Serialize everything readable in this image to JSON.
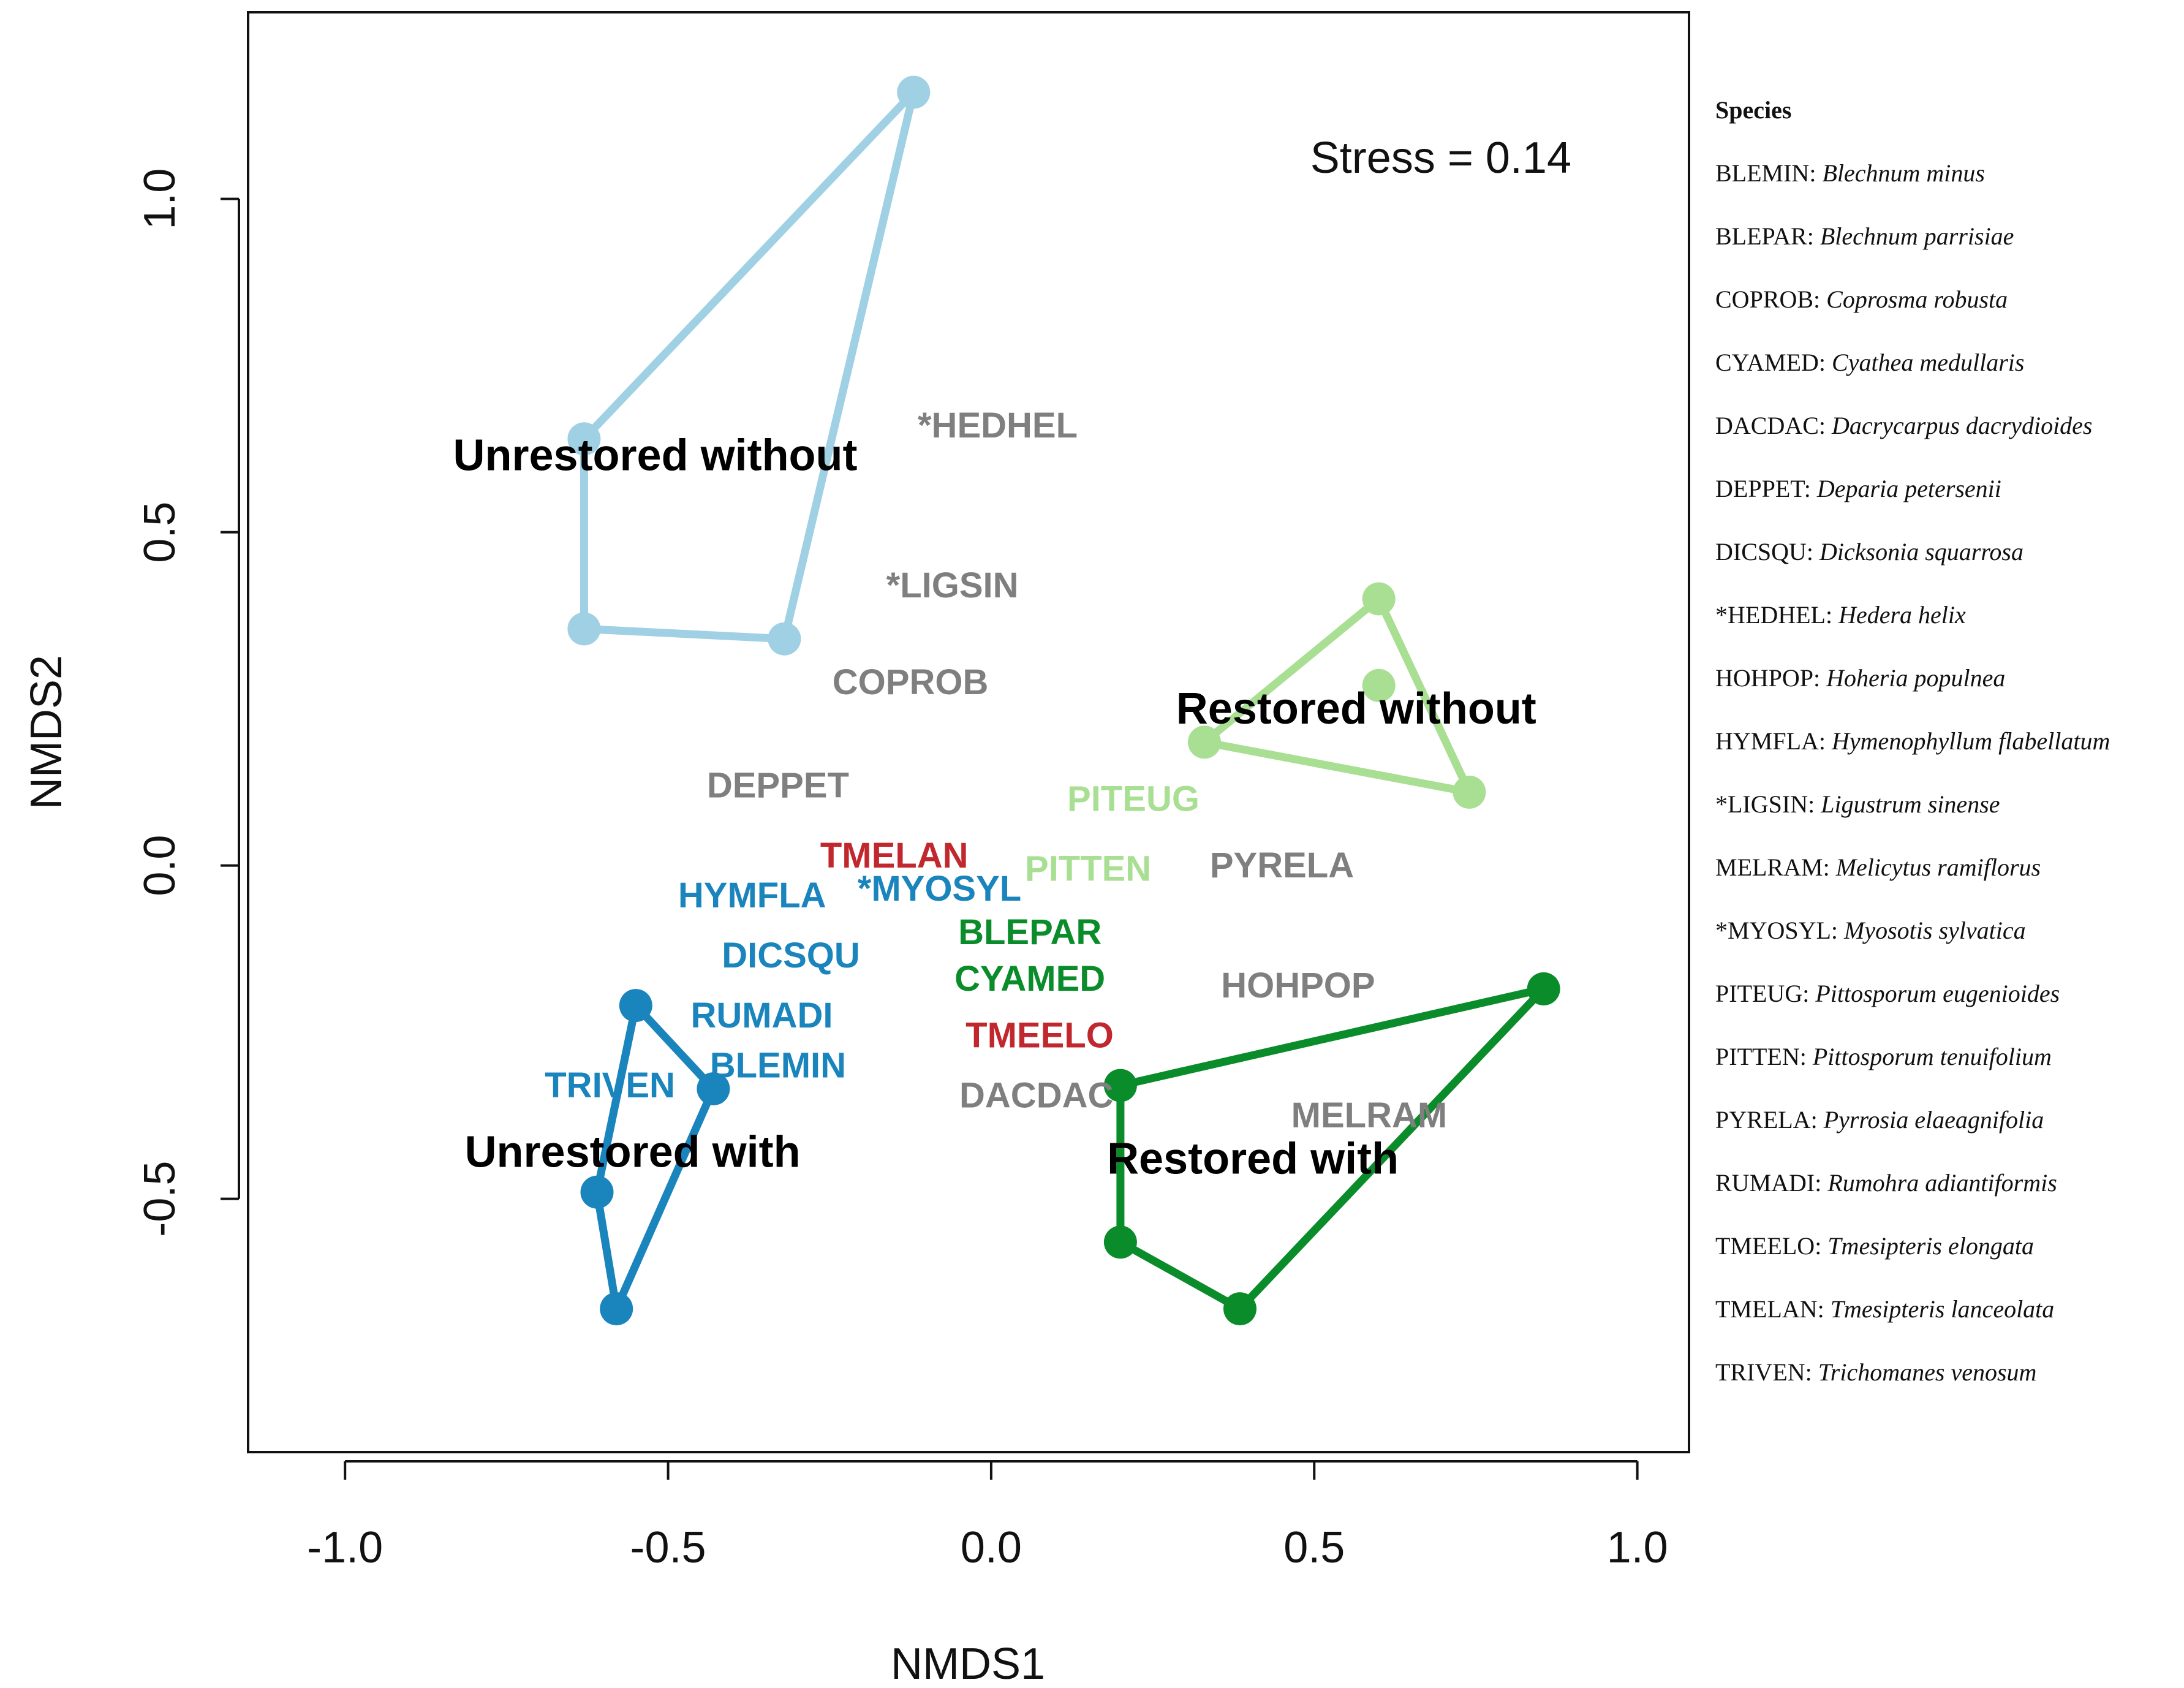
{
  "chart_data": {
    "type": "scatter",
    "subtype": "nmds-ordination",
    "xlabel": "NMDS1",
    "ylabel": "NMDS2",
    "xlim": [
      -1.15,
      1.08
    ],
    "ylim": [
      -0.88,
      1.28
    ],
    "x_ticks": [
      -1.0,
      -0.5,
      0.0,
      0.5,
      1.0
    ],
    "x_tick_labels": [
      "-1.0",
      "-0.5",
      "0.0",
      "0.5",
      "1.0"
    ],
    "y_ticks": [
      -0.5,
      0.0,
      0.5,
      1.0
    ],
    "y_tick_labels": [
      "-0.5",
      "0.0",
      "0.5",
      "1.0"
    ],
    "stress_label": "Stress =  0.14",
    "grid": false,
    "groups": [
      {
        "name": "Unrestored without",
        "color": "#9fd0e3",
        "points": [
          [
            -0.63,
            0.64
          ],
          [
            -0.63,
            0.355
          ],
          [
            -0.32,
            0.34
          ],
          [
            -0.12,
            1.16
          ]
        ],
        "hull": [
          [
            -0.63,
            0.64
          ],
          [
            -0.63,
            0.355
          ],
          [
            -0.32,
            0.34
          ],
          [
            -0.12,
            1.16
          ]
        ],
        "label_pos": [
          -0.52,
          0.615
        ]
      },
      {
        "name": "Restored without",
        "color": "#a8df92",
        "points": [
          [
            0.6,
            0.4
          ],
          [
            0.6,
            0.27
          ],
          [
            0.33,
            0.185
          ],
          [
            0.74,
            0.11
          ]
        ],
        "hull": [
          [
            0.33,
            0.185
          ],
          [
            0.6,
            0.4
          ],
          [
            0.74,
            0.11
          ]
        ],
        "label_pos": [
          0.565,
          0.235
        ]
      },
      {
        "name": "Unrestored with",
        "color": "#1a84bd",
        "points": [
          [
            -0.55,
            -0.21
          ],
          [
            -0.43,
            -0.335
          ],
          [
            -0.58,
            -0.665
          ],
          [
            -0.61,
            -0.49
          ]
        ],
        "hull": [
          [
            -0.55,
            -0.21
          ],
          [
            -0.43,
            -0.335
          ],
          [
            -0.58,
            -0.665
          ],
          [
            -0.61,
            -0.49
          ]
        ],
        "label_pos": [
          -0.555,
          -0.43
        ]
      },
      {
        "name": "Restored with",
        "color": "#0b8c2b",
        "points": [
          [
            0.2,
            -0.33
          ],
          [
            0.2,
            -0.565
          ],
          [
            0.385,
            -0.665
          ],
          [
            0.855,
            -0.185
          ]
        ],
        "hull": [
          [
            0.2,
            -0.33
          ],
          [
            0.2,
            -0.565
          ],
          [
            0.385,
            -0.665
          ],
          [
            0.855,
            -0.185
          ]
        ],
        "label_pos": [
          0.405,
          -0.44
        ]
      }
    ],
    "species": [
      {
        "code": "*HEDHEL",
        "x": 0.01,
        "y": 0.66,
        "color": "#7f7f7f"
      },
      {
        "code": "*LIGSIN",
        "x": -0.06,
        "y": 0.42,
        "color": "#7f7f7f"
      },
      {
        "code": "COPROB",
        "x": -0.125,
        "y": 0.275,
        "color": "#7f7f7f"
      },
      {
        "code": "DEPPET",
        "x": -0.33,
        "y": 0.12,
        "color": "#7f7f7f"
      },
      {
        "code": "PITEUG",
        "x": 0.22,
        "y": 0.1,
        "color": "#a8df92"
      },
      {
        "code": "TMELAN",
        "x": -0.15,
        "y": 0.015,
        "color": "#c0282d"
      },
      {
        "code": "PITTEN",
        "x": 0.15,
        "y": -0.005,
        "color": "#a8df92"
      },
      {
        "code": "PYRELA",
        "x": 0.45,
        "y": -0.0,
        "color": "#7f7f7f"
      },
      {
        "code": "HYMFLA",
        "x": -0.37,
        "y": -0.045,
        "color": "#1a84bd"
      },
      {
        "code": "*MYOSYL",
        "x": -0.08,
        "y": -0.035,
        "color": "#1a84bd"
      },
      {
        "code": "BLEPAR",
        "x": 0.06,
        "y": -0.1,
        "color": "#0b8c2b"
      },
      {
        "code": "DICSQU",
        "x": -0.31,
        "y": -0.135,
        "color": "#1a84bd"
      },
      {
        "code": "CYAMED",
        "x": 0.06,
        "y": -0.17,
        "color": "#0b8c2b"
      },
      {
        "code": "HOHPOP",
        "x": 0.475,
        "y": -0.18,
        "color": "#7f7f7f"
      },
      {
        "code": "RUMADI",
        "x": -0.355,
        "y": -0.225,
        "color": "#1a84bd"
      },
      {
        "code": "TMEELO",
        "x": 0.075,
        "y": -0.255,
        "color": "#c0282d"
      },
      {
        "code": "BLEMIN",
        "x": -0.33,
        "y": -0.3,
        "color": "#1a84bd"
      },
      {
        "code": "TRIVEN",
        "x": -0.59,
        "y": -0.33,
        "color": "#1a84bd"
      },
      {
        "code": "DACDAC",
        "x": 0.07,
        "y": -0.345,
        "color": "#7f7f7f"
      },
      {
        "code": "MELRAM",
        "x": 0.585,
        "y": -0.375,
        "color": "#7f7f7f"
      }
    ],
    "legend": {
      "title": "Species",
      "entries": [
        {
          "code": "BLEMIN",
          "name": "Blechnum minus"
        },
        {
          "code": "BLEPAR",
          "name": "Blechnum parrisiae"
        },
        {
          "code": "COPROB",
          "name": "Coprosma robusta"
        },
        {
          "code": "CYAMED",
          "name": "Cyathea medullaris"
        },
        {
          "code": "DACDAC",
          "name": "Dacrycarpus dacrydioides"
        },
        {
          "code": "DEPPET",
          "name": "Deparia petersenii"
        },
        {
          "code": "DICSQU",
          "name": "Dicksonia squarrosa"
        },
        {
          "code": "*HEDHEL",
          "name": "Hedera helix"
        },
        {
          "code": "HOHPOP",
          "name": "Hoheria populnea"
        },
        {
          "code": "HYMFLA",
          "name": "Hymenophyllum flabellatum"
        },
        {
          "code": "*LIGSIN",
          "name": "Ligustrum sinense"
        },
        {
          "code": "MELRAM",
          "name": "Melicytus ramiflorus"
        },
        {
          "code": "*MYOSYL",
          "name": "Myosotis sylvatica"
        },
        {
          "code": "PITEUG",
          "name": "Pittosporum eugenioides"
        },
        {
          "code": "PITTEN",
          "name": "Pittosporum tenuifolium"
        },
        {
          "code": "PYRELA",
          "name": "Pyrrosia elaeagnifolia"
        },
        {
          "code": "RUMADI",
          "name": "Rumohra adiantiformis"
        },
        {
          "code": "TMEELO",
          "name": "Tmesipteris elongata"
        },
        {
          "code": "TMELAN",
          "name": "Tmesipteris lanceolata"
        },
        {
          "code": "TRIVEN",
          "name": "Trichomanes venosum"
        }
      ]
    }
  }
}
